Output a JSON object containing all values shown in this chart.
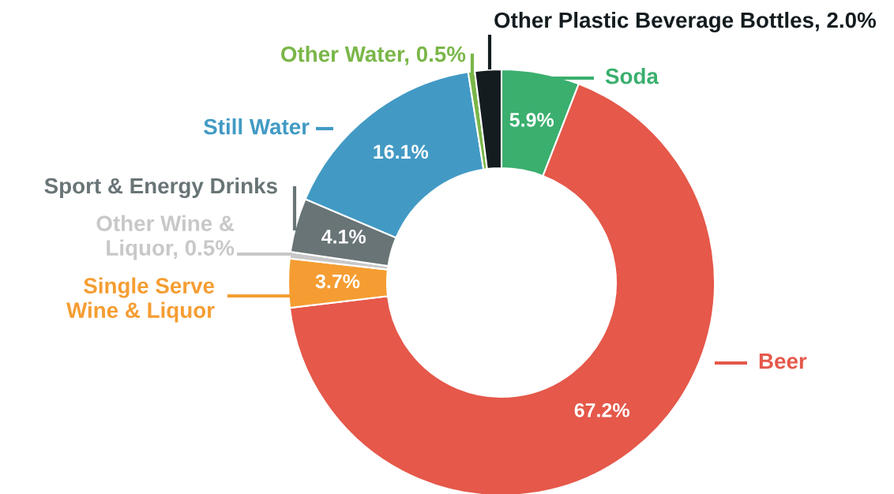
{
  "chart_data": {
    "type": "donut",
    "categories": [
      "Soda",
      "Beer",
      "Single Serve\nWine & Liquor",
      "Other Wine &\nLiquor, 0.5%",
      "Sport & Energy Drinks",
      "Still Water",
      "Other Water, 0.5%",
      "Other Plastic Beverage Bottles, 2.0%"
    ],
    "values": [
      5.9,
      67.2,
      3.7,
      0.5,
      4.1,
      16.1,
      0.5,
      2.0
    ],
    "colors": [
      "#3aaf6e",
      "#e5584a",
      "#f59d32",
      "#c8c8c8",
      "#687476",
      "#429ac4",
      "#7ab648",
      "#141c20"
    ],
    "value_labels": [
      "5.9%",
      "67.2%",
      "3.7%",
      null,
      "4.1%",
      "16.1%",
      null,
      null
    ],
    "legend": false
  }
}
